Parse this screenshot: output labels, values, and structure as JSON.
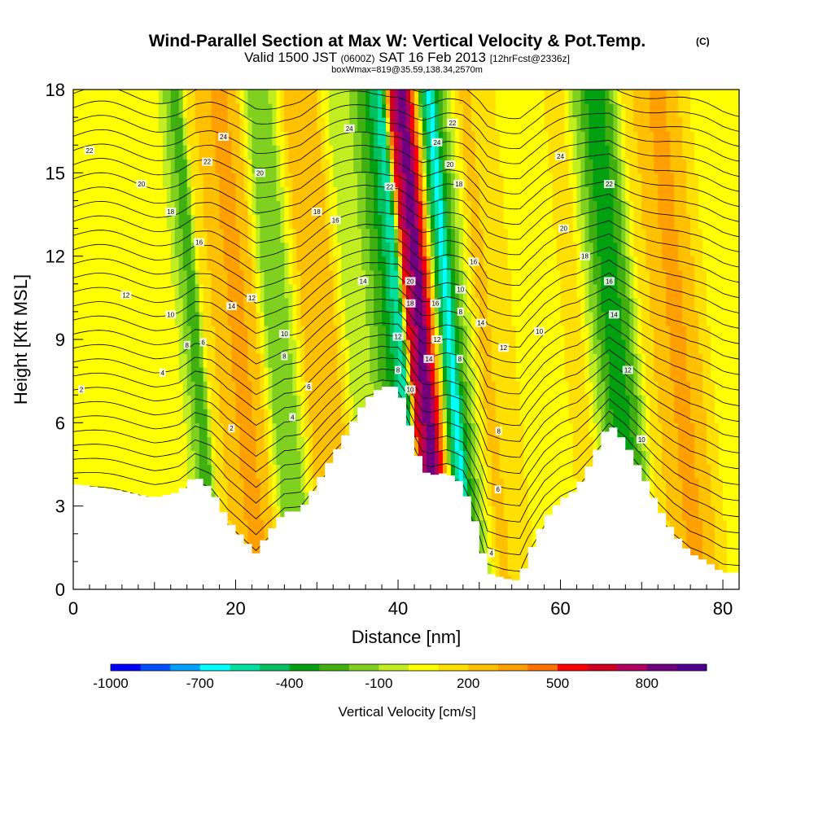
{
  "title": "Wind-Parallel Section at Max W: Vertical Velocity & Pot.Temp.",
  "copyright": "(C)",
  "subtitle": {
    "pre": "Valid 1500 JST ",
    "utc": "(0600Z)",
    "date": " SAT 16 Feb 2013 ",
    "fcst": "[12hrFcst@2336z]"
  },
  "box_info": "boxWmax=819@35.59,138.34,2570m",
  "chart_data": {
    "type": "heatmap",
    "xlabel": "Distance [nm]",
    "ylabel": "Height [Kft MSL]",
    "xlim": [
      0,
      82
    ],
    "ylim": [
      0,
      18
    ],
    "x_ticks": [
      0,
      20,
      40,
      60,
      80
    ],
    "y_ticks": [
      0,
      3,
      6,
      9,
      12,
      15,
      18
    ],
    "colorbar": {
      "title": "Vertical Velocity [cm/s]",
      "levels": [
        -1000,
        -900,
        -800,
        -700,
        -600,
        -500,
        -400,
        -300,
        -200,
        -100,
        0,
        100,
        200,
        300,
        400,
        500,
        600,
        700,
        800,
        900
      ],
      "labels": [
        "-1000",
        "-700",
        "-400",
        "-100",
        "200",
        "500",
        "800"
      ],
      "label_values": [
        -1000,
        -700,
        -400,
        -100,
        200,
        500,
        800
      ],
      "colors": [
        "#0000ff",
        "#0050ff",
        "#00a0ff",
        "#00ffff",
        "#00e0a0",
        "#00c060",
        "#00a010",
        "#40b010",
        "#80d020",
        "#c0ee20",
        "#ffff00",
        "#ffe000",
        "#ffc000",
        "#ffa000",
        "#ff7000",
        "#ff0000",
        "#d00020",
        "#b00060",
        "#700080",
        "#500090"
      ]
    },
    "vertical_velocity_columns": {
      "x": [
        0,
        2,
        4,
        6,
        8,
        10,
        12,
        14,
        16,
        17,
        18,
        20,
        22,
        24,
        26,
        28,
        30,
        32,
        34,
        36,
        38,
        40,
        41,
        42,
        43,
        44,
        45,
        46,
        47,
        48,
        49,
        50,
        52,
        54,
        56,
        58,
        60,
        62,
        64,
        66,
        68,
        70,
        72,
        74,
        76,
        78,
        80,
        82
      ],
      "w": [
        50,
        80,
        60,
        50,
        40,
        50,
        60,
        60,
        -200,
        -250,
        150,
        250,
        350,
        250,
        -200,
        -150,
        200,
        300,
        200,
        -100,
        -100,
        -300,
        -450,
        -600,
        600,
        800,
        800,
        400,
        -350,
        -700,
        -300,
        -100,
        250,
        150,
        100,
        50,
        50,
        100,
        150,
        -150,
        -400,
        -250,
        150,
        250,
        350,
        250,
        100,
        50
      ]
    },
    "terrain": {
      "x": [
        0,
        5,
        10,
        13,
        15,
        17,
        19,
        21,
        22.5,
        24,
        26,
        28,
        30,
        32,
        34,
        36,
        38,
        40,
        41,
        42,
        43,
        44,
        46,
        48,
        50,
        51,
        53,
        55,
        56,
        58,
        60,
        62,
        64,
        66,
        68,
        70,
        72,
        74,
        76,
        78,
        80,
        82
      ],
      "height": [
        3.8,
        3.6,
        3.3,
        3.5,
        4.1,
        3.6,
        2.5,
        1.8,
        1.3,
        2.0,
        2.8,
        2.8,
        3.8,
        4.8,
        5.8,
        6.8,
        7.3,
        7.3,
        6.5,
        5.3,
        4.3,
        4.1,
        4.2,
        3.8,
        2.0,
        0.6,
        0.4,
        0.3,
        1.2,
        2.5,
        3.2,
        3.6,
        4.7,
        6.0,
        5.3,
        4.2,
        3.0,
        2.0,
        1.3,
        1.0,
        0.6,
        0.6
      ]
    },
    "theta_contour_labels": [
      {
        "text": "22",
        "x": 2,
        "y": 15.8
      },
      {
        "text": "20",
        "x": 8.4,
        "y": 14.6
      },
      {
        "text": "18",
        "x": 12,
        "y": 13.6
      },
      {
        "text": "16",
        "x": 15.5,
        "y": 12.5
      },
      {
        "text": "12",
        "x": 6.5,
        "y": 10.6
      },
      {
        "text": "10",
        "x": 12,
        "y": 9.9
      },
      {
        "text": "8",
        "x": 14,
        "y": 8.8
      },
      {
        "text": "6",
        "x": 16,
        "y": 8.9
      },
      {
        "text": "4",
        "x": 11,
        "y": 7.8
      },
      {
        "text": "2",
        "x": 1,
        "y": 7.2
      },
      {
        "text": "2",
        "x": 19.5,
        "y": 5.8
      },
      {
        "text": "24",
        "x": 18.5,
        "y": 16.3
      },
      {
        "text": "22",
        "x": 16.5,
        "y": 15.4
      },
      {
        "text": "20",
        "x": 23,
        "y": 15.0
      },
      {
        "text": "14",
        "x": 19.5,
        "y": 10.2
      },
      {
        "text": "12",
        "x": 22,
        "y": 10.5
      },
      {
        "text": "10",
        "x": 26,
        "y": 9.2
      },
      {
        "text": "8",
        "x": 26,
        "y": 8.4
      },
      {
        "text": "6",
        "x": 29,
        "y": 7.3
      },
      {
        "text": "4",
        "x": 27,
        "y": 6.2
      },
      {
        "text": "18",
        "x": 30,
        "y": 13.6
      },
      {
        "text": "16",
        "x": 32.3,
        "y": 13.3
      },
      {
        "text": "24",
        "x": 34,
        "y": 16.6
      },
      {
        "text": "14",
        "x": 35.7,
        "y": 11.1
      },
      {
        "text": "22",
        "x": 39,
        "y": 14.5
      },
      {
        "text": "20",
        "x": 41.5,
        "y": 11.1
      },
      {
        "text": "18",
        "x": 41.5,
        "y": 10.3
      },
      {
        "text": "12",
        "x": 40,
        "y": 9.1
      },
      {
        "text": "8",
        "x": 40,
        "y": 7.9
      },
      {
        "text": "10",
        "x": 41.5,
        "y": 7.2
      },
      {
        "text": "16",
        "x": 44.6,
        "y": 10.3
      },
      {
        "text": "14",
        "x": 43.8,
        "y": 8.3
      },
      {
        "text": "12",
        "x": 44.8,
        "y": 9.0
      },
      {
        "text": "24",
        "x": 44.8,
        "y": 16.1
      },
      {
        "text": "22",
        "x": 46.7,
        "y": 16.8
      },
      {
        "text": "20",
        "x": 46.4,
        "y": 15.3
      },
      {
        "text": "18",
        "x": 47.5,
        "y": 14.6
      },
      {
        "text": "16",
        "x": 49.3,
        "y": 11.8
      },
      {
        "text": "10",
        "x": 47.7,
        "y": 10.8
      },
      {
        "text": "8",
        "x": 47.7,
        "y": 10.0
      },
      {
        "text": "14",
        "x": 50.2,
        "y": 9.6
      },
      {
        "text": "8",
        "x": 47.6,
        "y": 8.3
      },
      {
        "text": "12",
        "x": 53,
        "y": 8.7
      },
      {
        "text": "8",
        "x": 52.4,
        "y": 5.7
      },
      {
        "text": "6",
        "x": 52.3,
        "y": 3.6
      },
      {
        "text": "4",
        "x": 51.5,
        "y": 1.3
      },
      {
        "text": "10",
        "x": 57.4,
        "y": 9.3
      },
      {
        "text": "24",
        "x": 60,
        "y": 15.6
      },
      {
        "text": "22",
        "x": 66,
        "y": 14.6
      },
      {
        "text": "20",
        "x": 60.4,
        "y": 13.0
      },
      {
        "text": "18",
        "x": 63,
        "y": 12.0
      },
      {
        "text": "16",
        "x": 66,
        "y": 11.1
      },
      {
        "text": "14",
        "x": 66.6,
        "y": 9.9
      },
      {
        "text": "12",
        "x": 68.3,
        "y": 7.9
      },
      {
        "text": "10",
        "x": 70,
        "y": 5.4
      }
    ]
  }
}
